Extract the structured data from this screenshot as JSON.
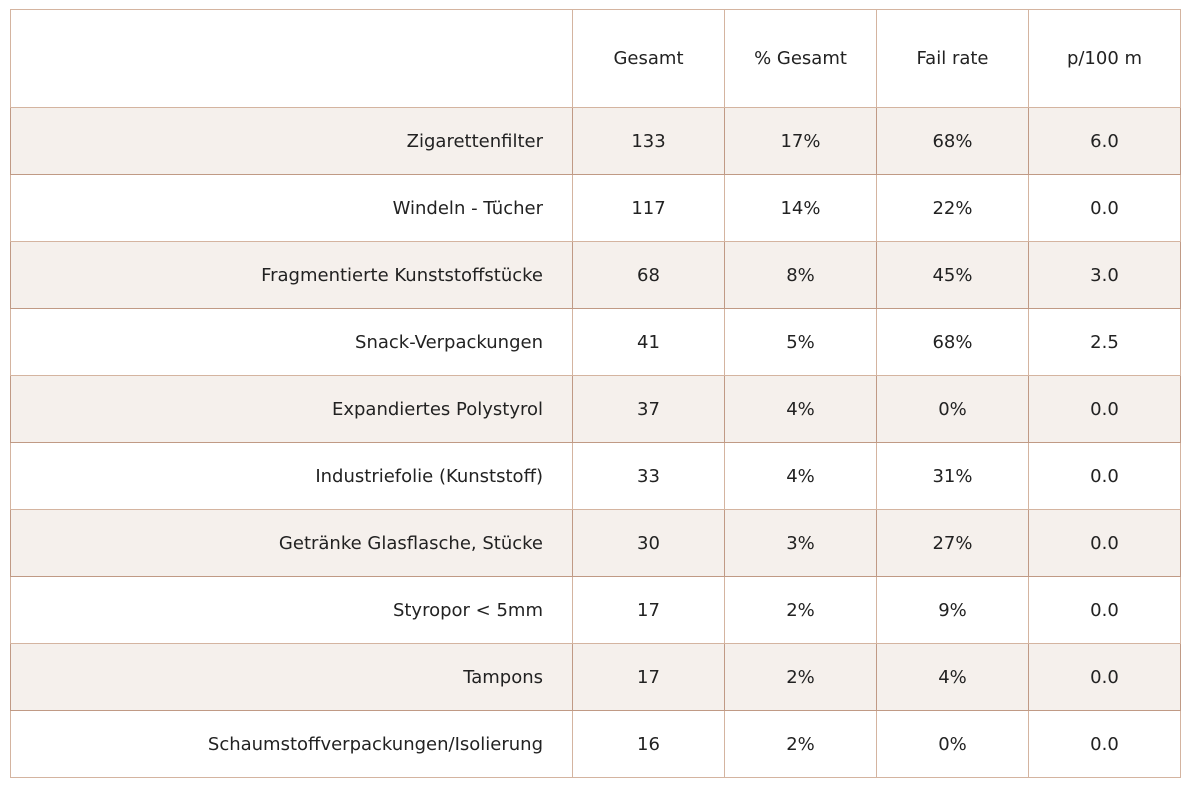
{
  "chart_data": {
    "type": "table",
    "columns": [
      "",
      "Gesamt",
      "% Gesamt",
      "Fail rate",
      "p/100 m"
    ],
    "rows": [
      {
        "label": "Zigarettenfilter",
        "gesamt": "133",
        "pct_gesamt": "17%",
        "fail_rate": "68%",
        "p100m": "6.0"
      },
      {
        "label": "Windeln - Tücher",
        "gesamt": "117",
        "pct_gesamt": "14%",
        "fail_rate": "22%",
        "p100m": "0.0"
      },
      {
        "label": "Fragmentierte Kunststoffstücke",
        "gesamt": "68",
        "pct_gesamt": "8%",
        "fail_rate": "45%",
        "p100m": "3.0"
      },
      {
        "label": "Snack-Verpackungen",
        "gesamt": "41",
        "pct_gesamt": "5%",
        "fail_rate": "68%",
        "p100m": "2.5"
      },
      {
        "label": "Expandiertes Polystyrol",
        "gesamt": "37",
        "pct_gesamt": "4%",
        "fail_rate": "0%",
        "p100m": "0.0"
      },
      {
        "label": "Industriefolie (Kunststoff)",
        "gesamt": "33",
        "pct_gesamt": "4%",
        "fail_rate": "31%",
        "p100m": "0.0"
      },
      {
        "label": "Getränke Glasflasche, Stücke",
        "gesamt": "30",
        "pct_gesamt": "3%",
        "fail_rate": "27%",
        "p100m": "0.0"
      },
      {
        "label": "Styropor < 5mm",
        "gesamt": "17",
        "pct_gesamt": "2%",
        "fail_rate": "9%",
        "p100m": "0.0"
      },
      {
        "label": "Tampons",
        "gesamt": "17",
        "pct_gesamt": "2%",
        "fail_rate": "4%",
        "p100m": "0.0"
      },
      {
        "label": "Schaumstoffverpackungen/Isolierung",
        "gesamt": "16",
        "pct_gesamt": "2%",
        "fail_rate": "0%",
        "p100m": "0.0"
      }
    ]
  },
  "colors": {
    "border": "#d4b4a0",
    "stripe_background": "#f5f0ec",
    "stripe_border": "#c09a85",
    "text": "#222222"
  }
}
